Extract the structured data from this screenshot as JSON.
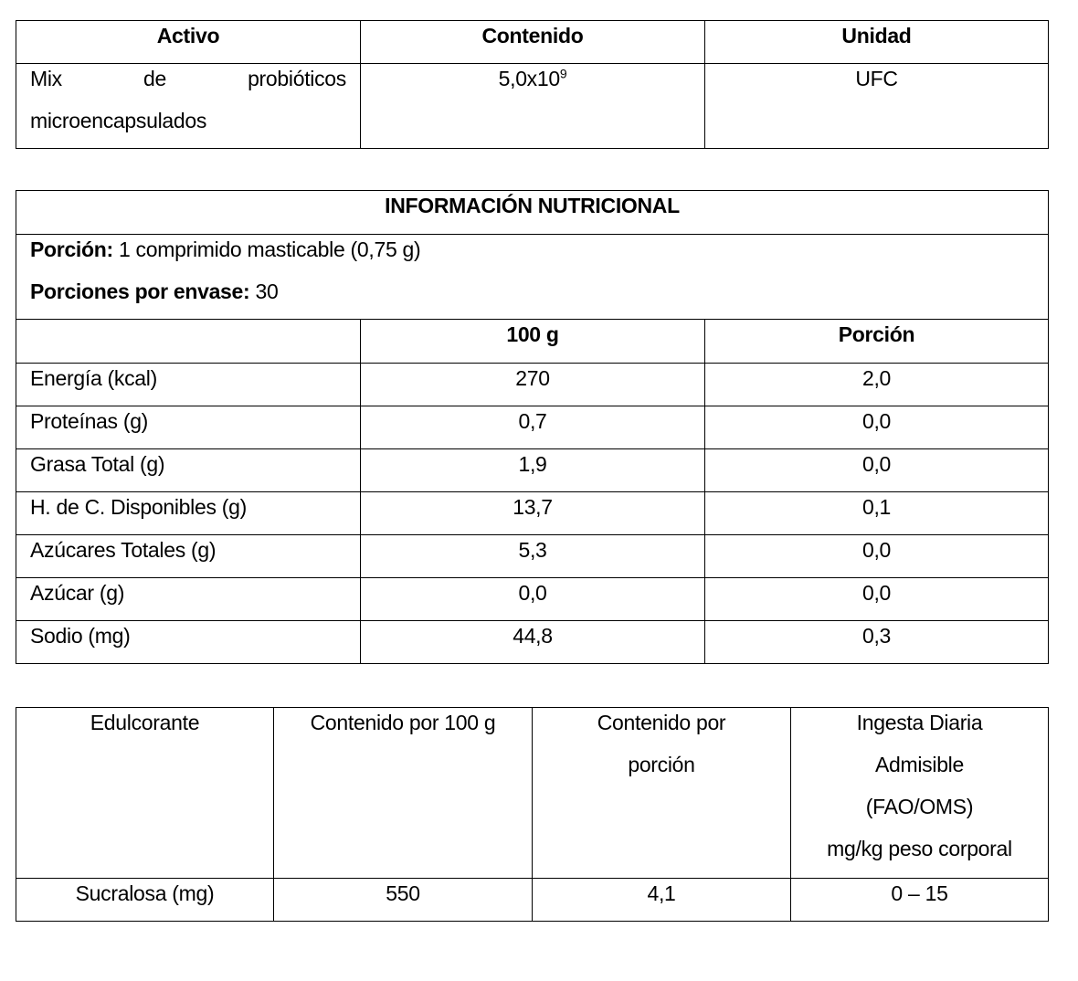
{
  "active_table": {
    "headers": [
      "Activo",
      "Contenido",
      "Unidad"
    ],
    "row": {
      "name_line1": "Mix de probióticos",
      "name_line2": "microencapsulados",
      "content_base": "5,0x10",
      "content_exp": "9",
      "unit": "UFC"
    }
  },
  "nutrition_table": {
    "title": "INFORMACIÓN NUTRICIONAL",
    "portion_label": "Porción:",
    "portion_value": " 1 comprimido masticable (0,75 g)",
    "servings_label": "Porciones por envase:",
    "servings_value": " 30",
    "headers": [
      "",
      "100 g",
      "Porción"
    ],
    "rows": [
      [
        "Energía (kcal)",
        "270",
        "2,0"
      ],
      [
        "Proteínas (g)",
        "0,7",
        "0,0"
      ],
      [
        "Grasa Total (g)",
        "1,9",
        "0,0"
      ],
      [
        "H. de C. Disponibles (g)",
        "13,7",
        "0,1"
      ],
      [
        "Azúcares Totales (g)",
        "5,3",
        "0,0"
      ],
      [
        "Azúcar (g)",
        "0,0",
        "0,0"
      ],
      [
        "Sodio (mg)",
        "44,8",
        "0,3"
      ]
    ]
  },
  "sweetener_table": {
    "headers": [
      "Edulcorante",
      "Contenido por 100 g",
      "Contenido por porción",
      "Ingesta Diaria Admisible (FAO/OMS) mg/kg peso corporal"
    ],
    "header_lines": {
      "h3": [
        "Contenido por",
        "porción"
      ],
      "h4": [
        "Ingesta Diaria",
        "Admisible",
        "(FAO/OMS)",
        "mg/kg peso corporal"
      ]
    },
    "row": [
      "Sucralosa (mg)",
      "550",
      "4,1",
      "0 – 15"
    ]
  }
}
